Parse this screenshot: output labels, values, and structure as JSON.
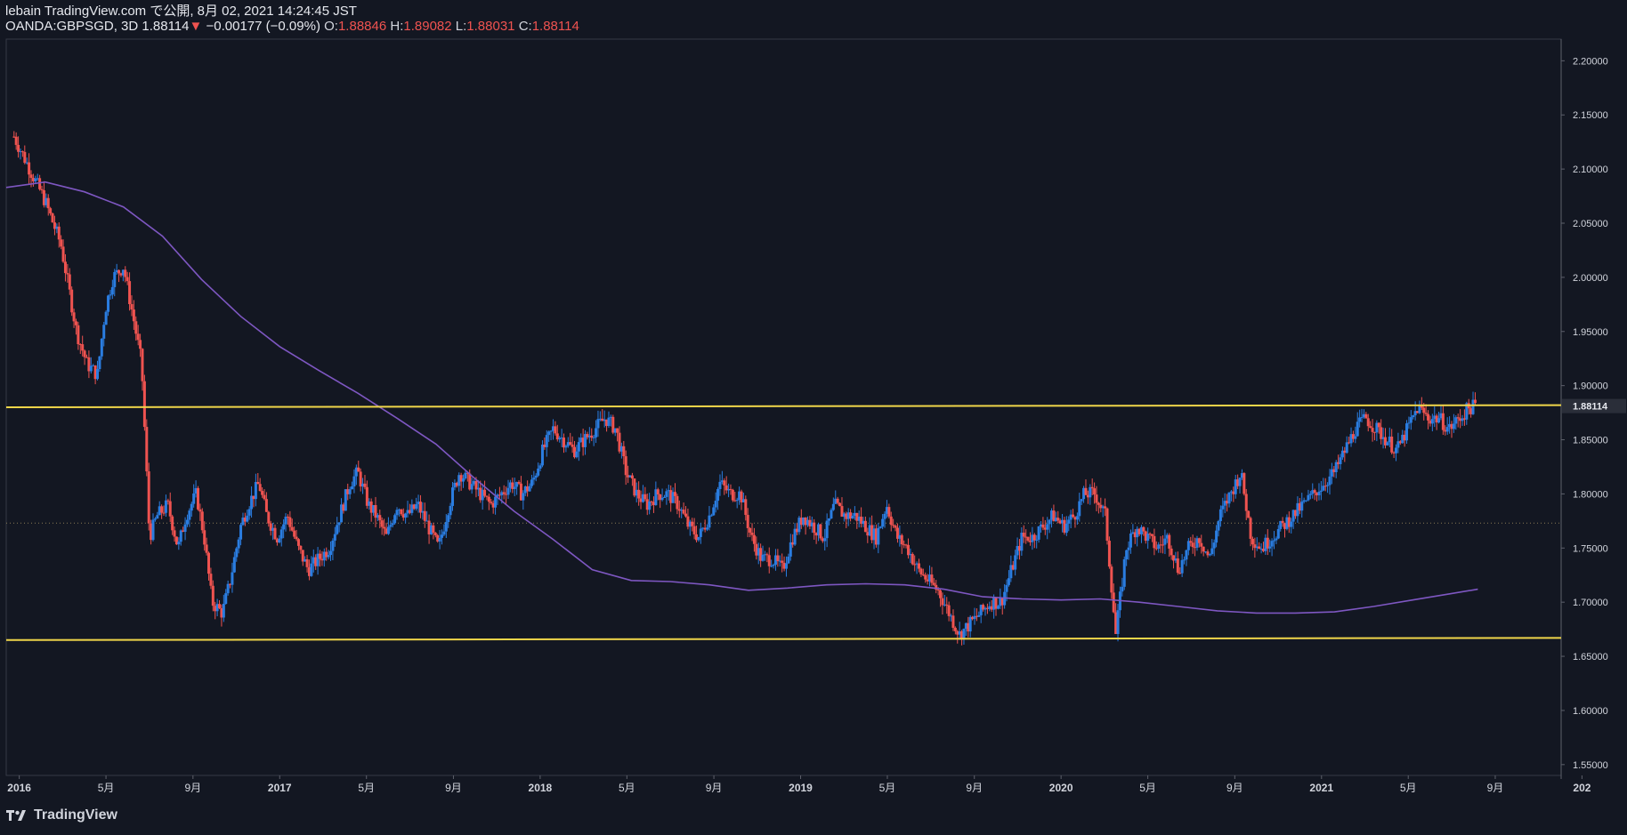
{
  "header": {
    "published": "lebain TradingView.com で公開, 8月 02, 2021 14:24:45 JST",
    "symbol": "OANDA:GBPSGD, 3D",
    "last": "1.88114",
    "arrow": "▼",
    "change": "−0.00177 (−0.09%)",
    "o_label": "O:",
    "o_value": "1.88846",
    "h_label": "H:",
    "h_value": "1.89082",
    "l_label": "L:",
    "l_value": "1.88031",
    "c_label": "C:",
    "c_value": "1.88114"
  },
  "footer": {
    "brand": "TradingView",
    "logo": "tradingview-logo-icon"
  },
  "colors": {
    "background": "#131722",
    "up": "#2a7de1",
    "down": "#ef5350",
    "ma": "#7e57c2",
    "level": "#f0d64a",
    "grid": "#2a2e39",
    "text": "#d1d4dc"
  },
  "chart_data": {
    "type": "candlestick",
    "symbol": "OANDA:GBPSGD",
    "timeframe": "3D",
    "ylim": [
      1.54,
      2.22
    ],
    "xlim": [
      2015.95,
      2021.92
    ],
    "grid": false,
    "y_ticks": [
      "2.20000",
      "2.15000",
      "2.10000",
      "2.05000",
      "2.00000",
      "1.95000",
      "1.90000",
      "1.85000",
      "1.80000",
      "1.75000",
      "1.70000",
      "1.65000",
      "1.60000",
      "1.55000"
    ],
    "x_ticks": [
      {
        "label": "2016",
        "t": 2016.0
      },
      {
        "label": "5月",
        "t": 2016.333
      },
      {
        "label": "9月",
        "t": 2016.667
      },
      {
        "label": "2017",
        "t": 2017.0
      },
      {
        "label": "5月",
        "t": 2017.333
      },
      {
        "label": "9月",
        "t": 2017.667
      },
      {
        "label": "2018",
        "t": 2018.0
      },
      {
        "label": "5月",
        "t": 2018.333
      },
      {
        "label": "9月",
        "t": 2018.667
      },
      {
        "label": "2019",
        "t": 2019.0
      },
      {
        "label": "5月",
        "t": 2019.333
      },
      {
        "label": "9月",
        "t": 2019.667
      },
      {
        "label": "2020",
        "t": 2020.0
      },
      {
        "label": "5月",
        "t": 2020.333
      },
      {
        "label": "9月",
        "t": 2020.667
      },
      {
        "label": "2021",
        "t": 2021.0
      },
      {
        "label": "5月",
        "t": 2021.333
      },
      {
        "label": "9月",
        "t": 2021.667
      },
      {
        "label": "202",
        "t": 2022.0
      }
    ],
    "last_price_label": "1.88114",
    "last_price": 1.88114,
    "dotted_level": 1.773,
    "horizontal_levels": [
      {
        "t1": 2015.95,
        "p1": 1.88,
        "t2": 2021.92,
        "p2": 1.882
      },
      {
        "t1": 2015.95,
        "p1": 1.665,
        "t2": 2021.92,
        "p2": 1.667
      }
    ],
    "price_path": [
      [
        2015.98,
        2.13
      ],
      [
        2016.02,
        2.11
      ],
      [
        2016.06,
        2.09
      ],
      [
        2016.1,
        2.07
      ],
      [
        2016.13,
        2.05
      ],
      [
        2016.16,
        2.03
      ],
      [
        2016.19,
        1.99
      ],
      [
        2016.22,
        1.95
      ],
      [
        2016.26,
        1.92
      ],
      [
        2016.3,
        1.91
      ],
      [
        2016.33,
        1.97
      ],
      [
        2016.36,
        2.0
      ],
      [
        2016.4,
        2.01
      ],
      [
        2016.44,
        1.96
      ],
      [
        2016.47,
        1.92
      ],
      [
        2016.5,
        1.76
      ],
      [
        2016.53,
        1.78
      ],
      [
        2016.57,
        1.79
      ],
      [
        2016.61,
        1.75
      ],
      [
        2016.64,
        1.78
      ],
      [
        2016.68,
        1.8
      ],
      [
        2016.71,
        1.76
      ],
      [
        2016.74,
        1.7
      ],
      [
        2016.78,
        1.69
      ],
      [
        2016.81,
        1.72
      ],
      [
        2016.85,
        1.77
      ],
      [
        2016.88,
        1.79
      ],
      [
        2016.92,
        1.81
      ],
      [
        2016.95,
        1.78
      ],
      [
        2016.99,
        1.76
      ],
      [
        2017.03,
        1.78
      ],
      [
        2017.07,
        1.75
      ],
      [
        2017.11,
        1.73
      ],
      [
        2017.15,
        1.74
      ],
      [
        2017.19,
        1.75
      ],
      [
        2017.23,
        1.78
      ],
      [
        2017.27,
        1.81
      ],
      [
        2017.3,
        1.82
      ],
      [
        2017.34,
        1.79
      ],
      [
        2017.37,
        1.78
      ],
      [
        2017.41,
        1.76
      ],
      [
        2017.45,
        1.79
      ],
      [
        2017.49,
        1.78
      ],
      [
        2017.53,
        1.79
      ],
      [
        2017.57,
        1.77
      ],
      [
        2017.61,
        1.75
      ],
      [
        2017.65,
        1.79
      ],
      [
        2017.69,
        1.82
      ],
      [
        2017.73,
        1.81
      ],
      [
        2017.77,
        1.8
      ],
      [
        2017.81,
        1.79
      ],
      [
        2017.85,
        1.8
      ],
      [
        2017.89,
        1.81
      ],
      [
        2017.93,
        1.8
      ],
      [
        2017.97,
        1.81
      ],
      [
        2018.01,
        1.84
      ],
      [
        2018.05,
        1.86
      ],
      [
        2018.09,
        1.85
      ],
      [
        2018.13,
        1.84
      ],
      [
        2018.17,
        1.85
      ],
      [
        2018.21,
        1.86
      ],
      [
        2018.25,
        1.87
      ],
      [
        2018.29,
        1.86
      ],
      [
        2018.33,
        1.82
      ],
      [
        2018.37,
        1.8
      ],
      [
        2018.41,
        1.79
      ],
      [
        2018.45,
        1.8
      ],
      [
        2018.49,
        1.8
      ],
      [
        2018.53,
        1.79
      ],
      [
        2018.57,
        1.77
      ],
      [
        2018.61,
        1.76
      ],
      [
        2018.65,
        1.78
      ],
      [
        2018.69,
        1.81
      ],
      [
        2018.73,
        1.8
      ],
      [
        2018.77,
        1.8
      ],
      [
        2018.81,
        1.76
      ],
      [
        2018.85,
        1.74
      ],
      [
        2018.89,
        1.74
      ],
      [
        2018.93,
        1.73
      ],
      [
        2018.97,
        1.76
      ],
      [
        2019.01,
        1.78
      ],
      [
        2019.05,
        1.77
      ],
      [
        2019.09,
        1.76
      ],
      [
        2019.13,
        1.79
      ],
      [
        2019.17,
        1.78
      ],
      [
        2019.21,
        1.78
      ],
      [
        2019.25,
        1.77
      ],
      [
        2019.29,
        1.76
      ],
      [
        2019.33,
        1.79
      ],
      [
        2019.37,
        1.76
      ],
      [
        2019.41,
        1.75
      ],
      [
        2019.45,
        1.73
      ],
      [
        2019.49,
        1.72
      ],
      [
        2019.53,
        1.71
      ],
      [
        2019.57,
        1.69
      ],
      [
        2019.61,
        1.67
      ],
      [
        2019.65,
        1.68
      ],
      [
        2019.69,
        1.69
      ],
      [
        2019.73,
        1.7
      ],
      [
        2019.77,
        1.7
      ],
      [
        2019.81,
        1.73
      ],
      [
        2019.85,
        1.76
      ],
      [
        2019.89,
        1.76
      ],
      [
        2019.93,
        1.77
      ],
      [
        2019.97,
        1.78
      ],
      [
        2020.01,
        1.77
      ],
      [
        2020.05,
        1.78
      ],
      [
        2020.09,
        1.8
      ],
      [
        2020.13,
        1.8
      ],
      [
        2020.17,
        1.78
      ],
      [
        2020.21,
        1.67
      ],
      [
        2020.25,
        1.75
      ],
      [
        2020.29,
        1.77
      ],
      [
        2020.33,
        1.76
      ],
      [
        2020.37,
        1.75
      ],
      [
        2020.41,
        1.76
      ],
      [
        2020.45,
        1.73
      ],
      [
        2020.49,
        1.75
      ],
      [
        2020.53,
        1.76
      ],
      [
        2020.57,
        1.74
      ],
      [
        2020.61,
        1.78
      ],
      [
        2020.65,
        1.8
      ],
      [
        2020.69,
        1.82
      ],
      [
        2020.73,
        1.76
      ],
      [
        2020.77,
        1.75
      ],
      [
        2020.81,
        1.76
      ],
      [
        2020.85,
        1.77
      ],
      [
        2020.89,
        1.78
      ],
      [
        2020.93,
        1.79
      ],
      [
        2020.97,
        1.8
      ],
      [
        2021.01,
        1.81
      ],
      [
        2021.05,
        1.82
      ],
      [
        2021.09,
        1.84
      ],
      [
        2021.13,
        1.86
      ],
      [
        2021.17,
        1.87
      ],
      [
        2021.21,
        1.86
      ],
      [
        2021.25,
        1.85
      ],
      [
        2021.29,
        1.84
      ],
      [
        2021.33,
        1.86
      ],
      [
        2021.37,
        1.88
      ],
      [
        2021.41,
        1.87
      ],
      [
        2021.45,
        1.87
      ],
      [
        2021.49,
        1.86
      ],
      [
        2021.53,
        1.87
      ],
      [
        2021.57,
        1.88
      ],
      [
        2021.59,
        1.881
      ]
    ],
    "moving_average": [
      [
        2015.95,
        2.083
      ],
      [
        2016.1,
        2.088
      ],
      [
        2016.25,
        2.079
      ],
      [
        2016.4,
        2.065
      ],
      [
        2016.55,
        2.038
      ],
      [
        2016.7,
        1.998
      ],
      [
        2016.85,
        1.964
      ],
      [
        2017.0,
        1.936
      ],
      [
        2017.15,
        1.914
      ],
      [
        2017.3,
        1.893
      ],
      [
        2017.45,
        1.87
      ],
      [
        2017.6,
        1.846
      ],
      [
        2017.75,
        1.814
      ],
      [
        2017.9,
        1.784
      ],
      [
        2018.05,
        1.758
      ],
      [
        2018.2,
        1.73
      ],
      [
        2018.35,
        1.72
      ],
      [
        2018.5,
        1.719
      ],
      [
        2018.65,
        1.716
      ],
      [
        2018.8,
        1.711
      ],
      [
        2018.95,
        1.713
      ],
      [
        2019.1,
        1.716
      ],
      [
        2019.25,
        1.717
      ],
      [
        2019.4,
        1.716
      ],
      [
        2019.55,
        1.712
      ],
      [
        2019.7,
        1.705
      ],
      [
        2019.85,
        1.703
      ],
      [
        2020.0,
        1.702
      ],
      [
        2020.15,
        1.703
      ],
      [
        2020.3,
        1.7
      ],
      [
        2020.45,
        1.696
      ],
      [
        2020.6,
        1.692
      ],
      [
        2020.75,
        1.69
      ],
      [
        2020.9,
        1.69
      ],
      [
        2021.05,
        1.691
      ],
      [
        2021.2,
        1.696
      ],
      [
        2021.35,
        1.702
      ],
      [
        2021.5,
        1.708
      ],
      [
        2021.6,
        1.712
      ]
    ]
  }
}
